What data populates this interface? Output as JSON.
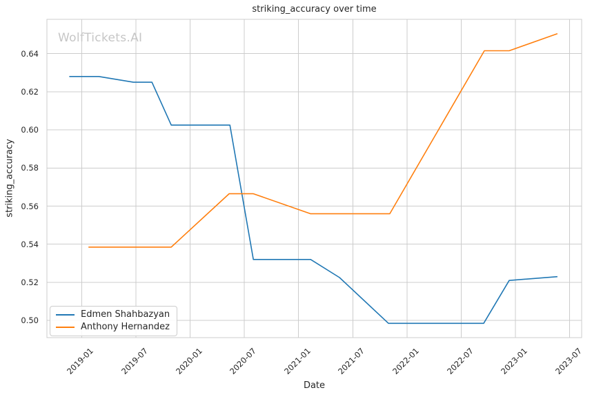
{
  "chart_data": {
    "type": "line",
    "title": "striking_accuracy over time",
    "watermark": "WolfTickets.AI",
    "xlabel": "Date",
    "ylabel": "striking_accuracy",
    "xlim": [
      2018.68,
      2023.61
    ],
    "ylim": [
      0.491,
      0.658
    ],
    "grid": true,
    "legend_position": "lower-left",
    "x_ticks": [
      {
        "label": "2019-01",
        "value": 2019.0
      },
      {
        "label": "2019-07",
        "value": 2019.5
      },
      {
        "label": "2020-01",
        "value": 2020.0
      },
      {
        "label": "2020-07",
        "value": 2020.5
      },
      {
        "label": "2021-01",
        "value": 2021.0
      },
      {
        "label": "2021-07",
        "value": 2021.5
      },
      {
        "label": "2022-01",
        "value": 2022.0
      },
      {
        "label": "2022-07",
        "value": 2022.5
      },
      {
        "label": "2023-01",
        "value": 2023.0
      },
      {
        "label": "2023-07",
        "value": 2023.5
      }
    ],
    "y_ticks": [
      {
        "label": "0.50",
        "value": 0.5
      },
      {
        "label": "0.52",
        "value": 0.52
      },
      {
        "label": "0.54",
        "value": 0.54
      },
      {
        "label": "0.56",
        "value": 0.56
      },
      {
        "label": "0.58",
        "value": 0.58
      },
      {
        "label": "0.60",
        "value": 0.6
      },
      {
        "label": "0.62",
        "value": 0.62
      },
      {
        "label": "0.64",
        "value": 0.64
      }
    ],
    "series": [
      {
        "name": "Edmen Shahbazyan",
        "color": "#1f77b4",
        "points": [
          {
            "date": "2018-11",
            "x": 2018.886,
            "y": 0.628
          },
          {
            "date": "2019-02",
            "x": 2019.159,
            "y": 0.628
          },
          {
            "date": "2019-06",
            "x": 2019.477,
            "y": 0.625
          },
          {
            "date": "2019-08",
            "x": 2019.648,
            "y": 0.625
          },
          {
            "date": "2019-10",
            "x": 2019.826,
            "y": 0.6025
          },
          {
            "date": "2020-05",
            "x": 2020.367,
            "y": 0.6025
          },
          {
            "date": "2020-08",
            "x": 2020.583,
            "y": 0.532
          },
          {
            "date": "2021-02",
            "x": 2021.111,
            "y": 0.532
          },
          {
            "date": "2021-05",
            "x": 2021.378,
            "y": 0.5225
          },
          {
            "date": "2021-10",
            "x": 2021.829,
            "y": 0.4985
          },
          {
            "date": "2022-09",
            "x": 2022.707,
            "y": 0.4985
          },
          {
            "date": "2022-12",
            "x": 2022.942,
            "y": 0.521
          },
          {
            "date": "2023-05",
            "x": 2023.387,
            "y": 0.523
          }
        ]
      },
      {
        "name": "Anthony Hernandez",
        "color": "#ff7f0e",
        "points": [
          {
            "date": "2019-01",
            "x": 2019.063,
            "y": 0.5385
          },
          {
            "date": "2019-10",
            "x": 2019.826,
            "y": 0.5385
          },
          {
            "date": "2020-05",
            "x": 2020.36,
            "y": 0.5665
          },
          {
            "date": "2020-08",
            "x": 2020.583,
            "y": 0.5665
          },
          {
            "date": "2021-02",
            "x": 2021.111,
            "y": 0.556
          },
          {
            "date": "2021-11",
            "x": 2021.841,
            "y": 0.556
          },
          {
            "date": "2022-09",
            "x": 2022.713,
            "y": 0.6415
          },
          {
            "date": "2022-12",
            "x": 2022.942,
            "y": 0.6415
          },
          {
            "date": "2023-05",
            "x": 2023.387,
            "y": 0.6505
          }
        ]
      }
    ],
    "colors": {
      "background": "#ffffff",
      "grid": "#cccccc",
      "axes_edge": "#cccccc",
      "text": "#262626",
      "watermark": "#c6c6c6"
    }
  }
}
